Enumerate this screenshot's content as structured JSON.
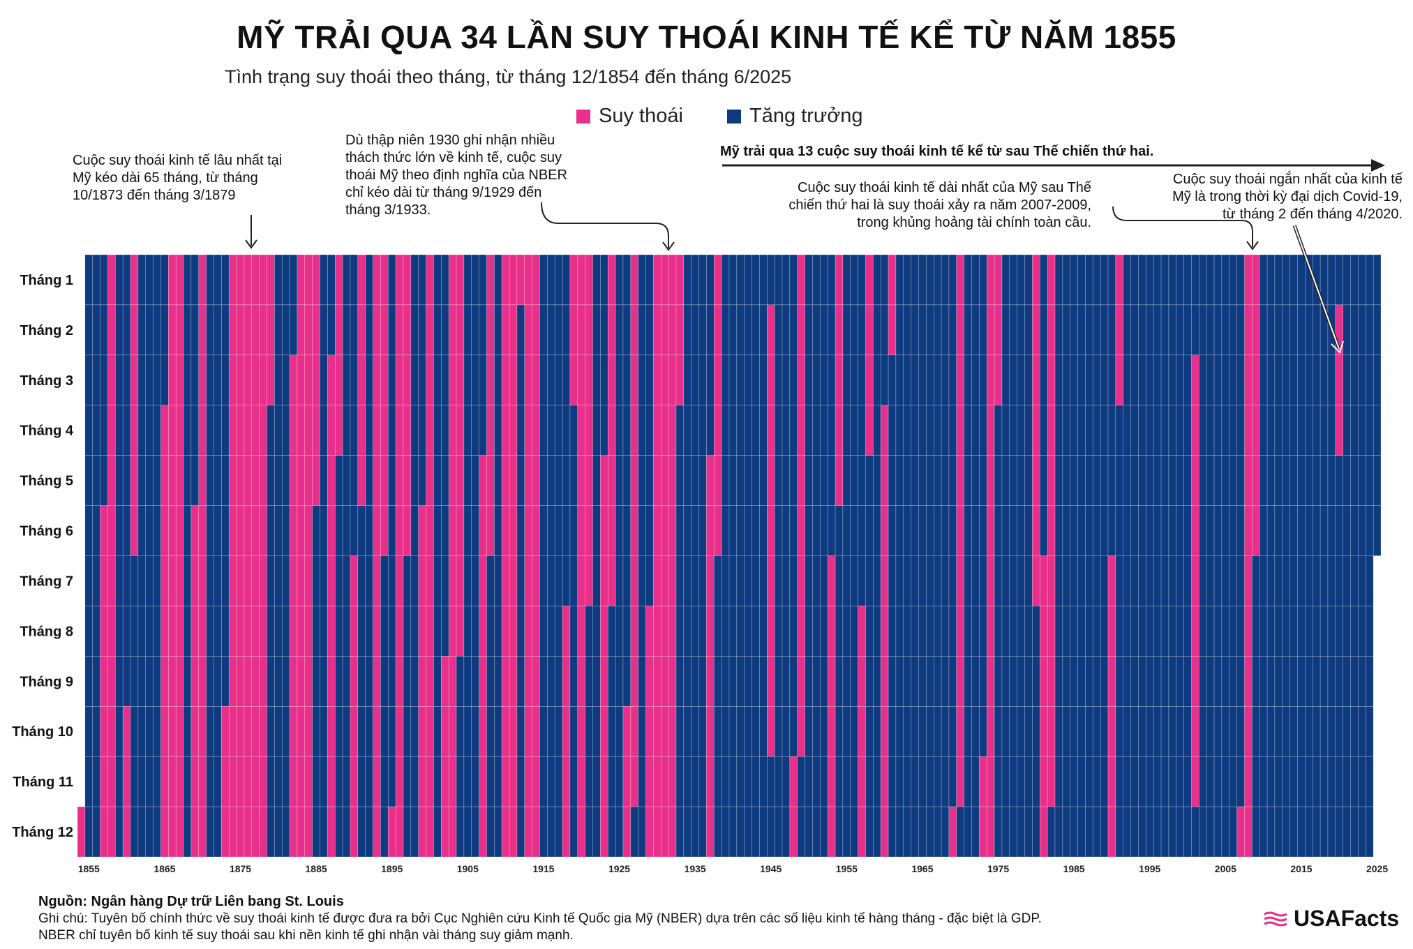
{
  "header": {
    "title": "MỸ TRẢI QUA 34 LẦN SUY THOÁI KINH TẾ KỂ TỪ NĂM 1855",
    "subtitle": "Tình trạng suy thoái theo tháng, từ tháng 12/1854 đến tháng 6/2025"
  },
  "legend": {
    "recession": "Suy thoái",
    "growth": "Tăng trưởng"
  },
  "annotations": {
    "longest": [
      "Cuộc suy thoái kinh tế lâu nhất tại",
      "Mỹ kéo dài 65 tháng, từ tháng",
      "10/1873 đến tháng 3/1879"
    ],
    "thirties": [
      "Dù thập niên 1930 ghi nhận nhiều",
      "thách thức lớn về kinh tế, cuộc suy",
      "thoái Mỹ theo định nghĩa của NBER",
      "chỉ kéo dài từ tháng 9/1929 đến",
      "tháng 3/1933."
    ],
    "ww2": "Mỹ trải qua 13 cuộc suy thoái kinh tế kể từ sau Thế chiến thứ hai.",
    "postwar_longest": [
      "Cuộc suy thoái kinh tế dài nhất của Mỹ sau Thế",
      "chiến thứ hai là suy thoái xảy ra năm 2007-2009,",
      "trong khủng hoảng tài chính toàn cầu."
    ],
    "covid": [
      "Cuộc suy thoái ngắn nhất của kinh tế",
      "Mỹ là trong thời kỳ đại dịch Covid-19,",
      "từ tháng 2 đến tháng 4/2020."
    ]
  },
  "footer": {
    "source": "Nguồn: Ngân hàng Dự trữ Liên bang St. Louis",
    "note_line1": "Ghi chú: Tuyên bố chính thức về suy thoái kinh tế được đưa ra bởi Cục Nghiên cứu Kinh tế Quốc gia Mỹ (NBER) dựa trên các số liệu kinh tế hàng tháng - đặc biệt là GDP.",
    "note_line2": "NBER chỉ tuyên bố kinh tế suy thoái sau khi nền kinh tế ghi nhận vài tháng suy giảm mạnh.",
    "brand": "USAFacts"
  },
  "colors": {
    "recession": "#e8308a",
    "growth": "#0e3a80",
    "grid": "#ffffff"
  },
  "chart_data": {
    "type": "heatmap",
    "title": "MỸ TRẢI QUA 34 LẦN SUY THOÁI KINH TẾ KỂ TỪ NĂM 1855",
    "x_axis": "year",
    "y_axis": "month",
    "year_range": [
      1854,
      2025
    ],
    "months": [
      "Tháng 1",
      "Tháng 2",
      "Tháng 3",
      "Tháng 4",
      "Tháng 5",
      "Tháng 6",
      "Tháng 7",
      "Tháng 8",
      "Tháng 9",
      "Tháng 10",
      "Tháng 11",
      "Tháng 12"
    ],
    "x_ticks": [
      1855,
      1865,
      1875,
      1885,
      1895,
      1905,
      1915,
      1925,
      1935,
      1945,
      1955,
      1965,
      1975,
      1985,
      1995,
      2005,
      2015,
      2025
    ],
    "data_start": "1854-12",
    "data_end": "2025-06",
    "recessions": [
      {
        "peak": "1854-12",
        "trough": "1854-12"
      },
      {
        "peak": "1857-06",
        "trough": "1858-12"
      },
      {
        "peak": "1860-10",
        "trough": "1861-06"
      },
      {
        "peak": "1865-04",
        "trough": "1867-12"
      },
      {
        "peak": "1869-06",
        "trough": "1870-12"
      },
      {
        "peak": "1873-10",
        "trough": "1879-03"
      },
      {
        "peak": "1882-03",
        "trough": "1885-05"
      },
      {
        "peak": "1887-03",
        "trough": "1888-04"
      },
      {
        "peak": "1890-07",
        "trough": "1891-05"
      },
      {
        "peak": "1893-01",
        "trough": "1894-06"
      },
      {
        "peak": "1895-12",
        "trough": "1897-06"
      },
      {
        "peak": "1899-06",
        "trough": "1900-12"
      },
      {
        "peak": "1902-09",
        "trough": "1904-08"
      },
      {
        "peak": "1907-05",
        "trough": "1908-06"
      },
      {
        "peak": "1910-01",
        "trough": "1912-01"
      },
      {
        "peak": "1913-01",
        "trough": "1914-12"
      },
      {
        "peak": "1918-08",
        "trough": "1919-03"
      },
      {
        "peak": "1920-01",
        "trough": "1921-07"
      },
      {
        "peak": "1923-05",
        "trough": "1924-07"
      },
      {
        "peak": "1926-10",
        "trough": "1927-11"
      },
      {
        "peak": "1929-08",
        "trough": "1933-03"
      },
      {
        "peak": "1937-05",
        "trough": "1938-06"
      },
      {
        "peak": "1945-02",
        "trough": "1945-10"
      },
      {
        "peak": "1948-11",
        "trough": "1949-10"
      },
      {
        "peak": "1953-07",
        "trough": "1954-05"
      },
      {
        "peak": "1957-08",
        "trough": "1958-04"
      },
      {
        "peak": "1960-04",
        "trough": "1961-02"
      },
      {
        "peak": "1969-12",
        "trough": "1970-11"
      },
      {
        "peak": "1973-11",
        "trough": "1975-03"
      },
      {
        "peak": "1980-01",
        "trough": "1980-07"
      },
      {
        "peak": "1981-07",
        "trough": "1982-11"
      },
      {
        "peak": "1990-07",
        "trough": "1991-03"
      },
      {
        "peak": "2001-03",
        "trough": "2001-11"
      },
      {
        "peak": "2007-12",
        "trough": "2009-06"
      },
      {
        "peak": "2020-02",
        "trough": "2020-04"
      }
    ]
  }
}
